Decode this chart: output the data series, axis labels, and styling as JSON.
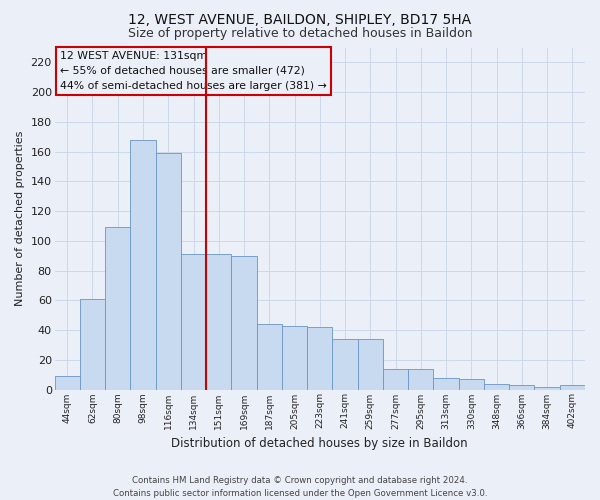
{
  "title": "12, WEST AVENUE, BAILDON, SHIPLEY, BD17 5HA",
  "subtitle": "Size of property relative to detached houses in Baildon",
  "xlabel": "Distribution of detached houses by size in Baildon",
  "ylabel": "Number of detached properties",
  "footer_line1": "Contains HM Land Registry data © Crown copyright and database right 2024.",
  "footer_line2": "Contains public sector information licensed under the Open Government Licence v3.0.",
  "annotation_title": "12 WEST AVENUE: 131sqm",
  "annotation_line2": "← 55% of detached houses are smaller (472)",
  "annotation_line3": "44% of semi-detached houses are larger (381) →",
  "categories": [
    "44sqm",
    "62sqm",
    "80sqm",
    "98sqm",
    "116sqm",
    "134sqm",
    "151sqm",
    "169sqm",
    "187sqm",
    "205sqm",
    "223sqm",
    "241sqm",
    "259sqm",
    "277sqm",
    "295sqm",
    "313sqm",
    "330sqm",
    "348sqm",
    "366sqm",
    "384sqm",
    "402sqm"
  ],
  "values": [
    9,
    61,
    109,
    168,
    159,
    91,
    91,
    90,
    44,
    43,
    42,
    34,
    34,
    14,
    14,
    8,
    7,
    4,
    3,
    2,
    3
  ],
  "bar_color": "#c8daf0",
  "bar_edge_color": "#6a96c8",
  "vline_color": "#cc0000",
  "vline_index": 5,
  "annotation_box_edge": "#cc0000",
  "grid_color": "#cdd8ea",
  "bg_color": "#eaeff8",
  "ylim": [
    0,
    230
  ],
  "yticks": [
    0,
    20,
    40,
    60,
    80,
    100,
    120,
    140,
    160,
    180,
    200,
    220
  ],
  "title_fontsize": 10,
  "subtitle_fontsize": 9
}
